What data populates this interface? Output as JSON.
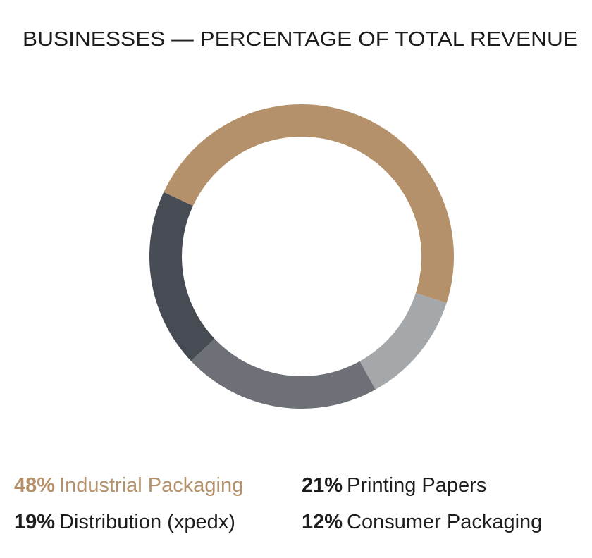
{
  "chart_data": {
    "type": "donut",
    "title": "BUSINESSES — PERCENTAGE OF TOTAL REVENUE",
    "categories": [
      "Industrial Packaging",
      "Consumer Packaging",
      "Printing Papers",
      "Distribution (xpedx)"
    ],
    "values": [
      48,
      12,
      21,
      19
    ],
    "value_labels": [
      "48%",
      "12%",
      "21%",
      "19%"
    ],
    "colors": [
      "#b4916b",
      "#a5a8ab",
      "#6d7177",
      "#474c54"
    ]
  }
}
